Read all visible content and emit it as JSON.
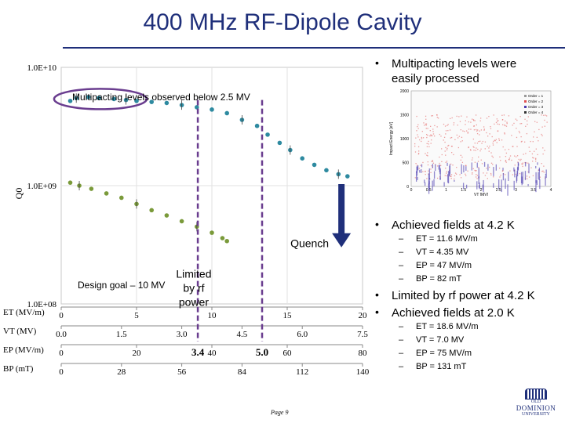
{
  "slide": {
    "title": "400 MHz RF-Dipole Cavity",
    "page_label": "Page 9"
  },
  "chart": {
    "y_axis": {
      "label": "Q0",
      "ticks": [
        "1.0E+10",
        "1.0E+09",
        "1.0E+08"
      ]
    },
    "axes": [
      {
        "label": "ET (MV/m)",
        "ticks": [
          "0",
          "5",
          "10",
          "15",
          "20"
        ]
      },
      {
        "label": "VT (MV)",
        "ticks": [
          "0.0",
          "1.5",
          "3.0",
          "4.5",
          "6.0",
          "7.5"
        ]
      },
      {
        "label": "EP (MV/m)",
        "ticks": [
          "0",
          "20",
          "40",
          "60",
          "80"
        ]
      },
      {
        "label": "BP (mT)",
        "ticks": [
          "0",
          "28",
          "56",
          "84",
          "112",
          "140"
        ]
      }
    ],
    "annotations": {
      "multipacting_note": "Multipacting levels observed below 2.5 MV",
      "quench": "Quench",
      "limited": [
        "Limited",
        "by rf",
        "power"
      ],
      "design_goal": "Design goal – 10 MV",
      "mark_a": "3.4",
      "mark_b": "5.0"
    },
    "colors": {
      "teal": "#2e8aa0",
      "green": "#7a9a3a",
      "purple": "#6a3d8f",
      "navy": "#1f2f7a"
    }
  },
  "chart_data": [
    {
      "type": "scatter",
      "x_units": "ET (MV/m)",
      "ylim": [
        100000000.0,
        10000000000.0
      ],
      "log_y": true,
      "xlim": [
        0,
        20
      ],
      "series": [
        {
          "values": [
            [
              0.6,
              5200000000.0
            ],
            [
              1.0,
              5500000000.0
            ],
            [
              1.8,
              5600000000.0
            ],
            [
              2.5,
              5500000000.0
            ],
            [
              3.5,
              5400000000.0
            ],
            [
              4.3,
              5300000000.0
            ],
            [
              5.0,
              5200000000.0
            ],
            [
              6.0,
              5100000000.0
            ],
            [
              7.0,
              5000000000.0
            ],
            [
              8.0,
              4800000000.0
            ],
            [
              9.0,
              4600000000.0
            ],
            [
              10.0,
              4400000000.0
            ],
            [
              11.0,
              4100000000.0
            ],
            [
              12.0,
              3600000000.0
            ],
            [
              13.0,
              3200000000.0
            ],
            [
              13.7,
              2700000000.0
            ],
            [
              14.5,
              2300000000.0
            ],
            [
              15.2,
              2000000000.0
            ],
            [
              16.0,
              1700000000.0
            ],
            [
              16.8,
              1500000000.0
            ],
            [
              17.6,
              1350000000.0
            ],
            [
              18.4,
              1250000000.0
            ],
            [
              19.0,
              1200000000.0
            ]
          ]
        },
        {
          "values": [
            [
              0.6,
              1060000000.0
            ],
            [
              1.2,
              1000000000.0
            ],
            [
              2.0,
              940000000.0
            ],
            [
              3.0,
              860000000.0
            ],
            [
              4.0,
              790000000.0
            ],
            [
              5.0,
              700000000.0
            ],
            [
              6.0,
              620000000.0
            ],
            [
              7.0,
              560000000.0
            ],
            [
              8.0,
              500000000.0
            ],
            [
              9.0,
              450000000.0
            ],
            [
              10.0,
              400000000.0
            ],
            [
              10.7,
              360000000.0
            ],
            [
              11.0,
              340000000.0
            ]
          ]
        }
      ]
    },
    {
      "type": "scatter",
      "title": "",
      "xlabel": "VT [MV]",
      "ylabel": "Impact Energy [eV]",
      "xlim": [
        0,
        4.0
      ],
      "ylim": [
        0,
        2000
      ],
      "x_ticks": [
        "0",
        "0.5",
        "1",
        "1.5",
        "2",
        "2.5",
        "3",
        "3.5",
        "4"
      ],
      "y_ticks": [
        "0",
        "500",
        "1000",
        "1500",
        "2000"
      ],
      "legend": [
        "Order = 1",
        "Order = 2",
        "Order = 3",
        "Order = 4"
      ]
    }
  ],
  "bullets": [
    {
      "text": "Multipacting levels were easily processed",
      "lines": [
        "Multipacting levels were",
        "easily processed"
      ],
      "subs": []
    },
    {
      "text": "Achieved fields at 4.2 K",
      "subs": [
        "ET = 11.6 MV/m",
        "VT = 4.35 MV",
        "EP = 47 MV/m",
        "BP = 82 mT"
      ]
    },
    {
      "text": "Limited by rf power at 4.2 K",
      "subs": []
    },
    {
      "text": "Achieved fields at 2.0 K",
      "subs": [
        "ET = 18.6 MV/m",
        "VT = 7.0 MV",
        "EP = 75 MV/m",
        "BP = 131 mT"
      ]
    }
  ],
  "logo": {
    "lines": [
      "OLD",
      "DOMINION",
      "UNIVERSITY"
    ]
  }
}
